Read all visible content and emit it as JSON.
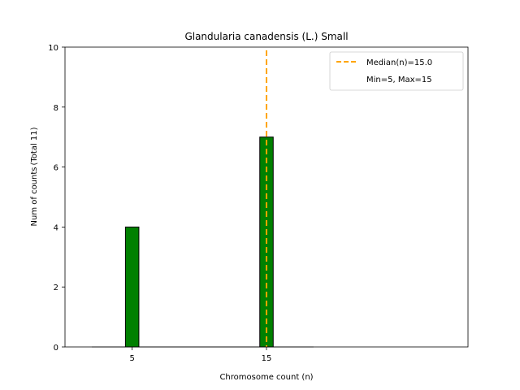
{
  "chart_data": {
    "type": "bar",
    "title": "Glandularia canadensis (L.) Small",
    "xlabel": "Chromosome count (n)",
    "ylabel": "Num of counts",
    "ylabel_secondary": "(Total 11)",
    "xlim": [
      0,
      30
    ],
    "ylim": [
      0,
      10
    ],
    "x_ticks": [
      5,
      15
    ],
    "y_ticks": [
      0,
      2,
      4,
      6,
      8,
      10
    ],
    "bars": [
      {
        "x": 5,
        "value": 4
      },
      {
        "x": 15,
        "value": 7
      }
    ],
    "bar_color": "#008000",
    "median": {
      "value": 15.0,
      "label": "Median(n)=15.0",
      "color": "#FFA500"
    },
    "range_label": "Min=5, Max=15",
    "legend_position": "top-right",
    "grid": false
  }
}
